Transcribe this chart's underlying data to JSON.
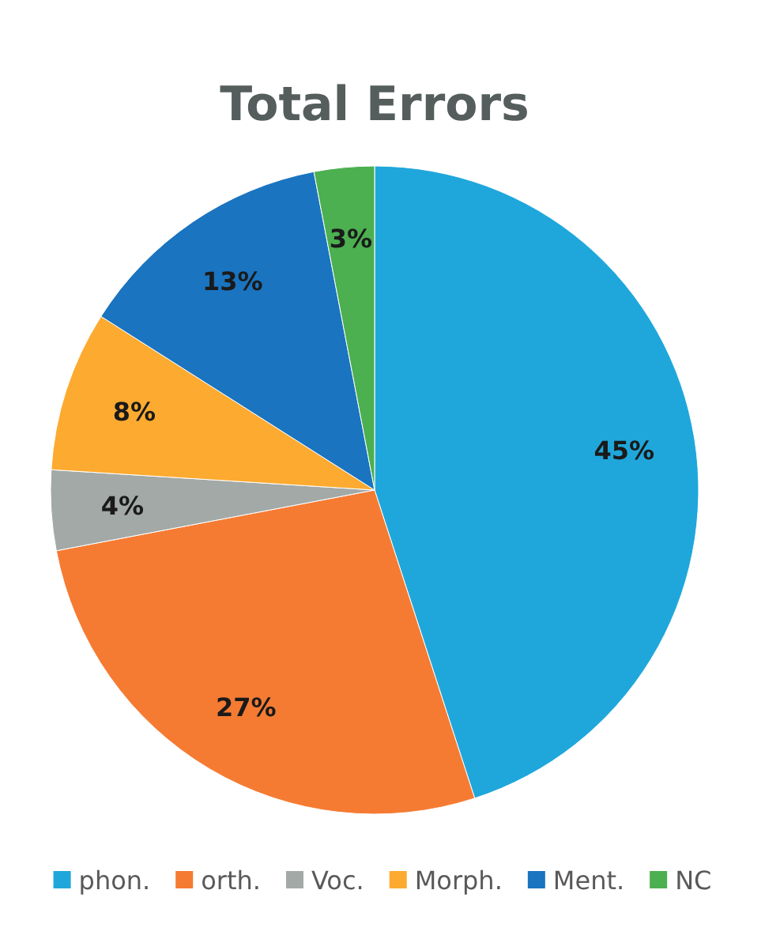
{
  "chart_data": {
    "type": "pie",
    "title": "Total Errors",
    "categories": [
      "phon.",
      "orth.",
      "Voc.",
      "Morph.",
      "Ment.",
      "NC"
    ],
    "values": [
      45,
      27,
      4,
      8,
      13,
      3
    ],
    "value_labels": [
      "45%",
      "27%",
      "4%",
      "8%",
      "13%",
      "3%"
    ],
    "colors": [
      "#1fa7dc",
      "#f57b33",
      "#a3a9a7",
      "#fdaa30",
      "#1a74c0",
      "#4caf50"
    ],
    "legend": "bottom"
  }
}
